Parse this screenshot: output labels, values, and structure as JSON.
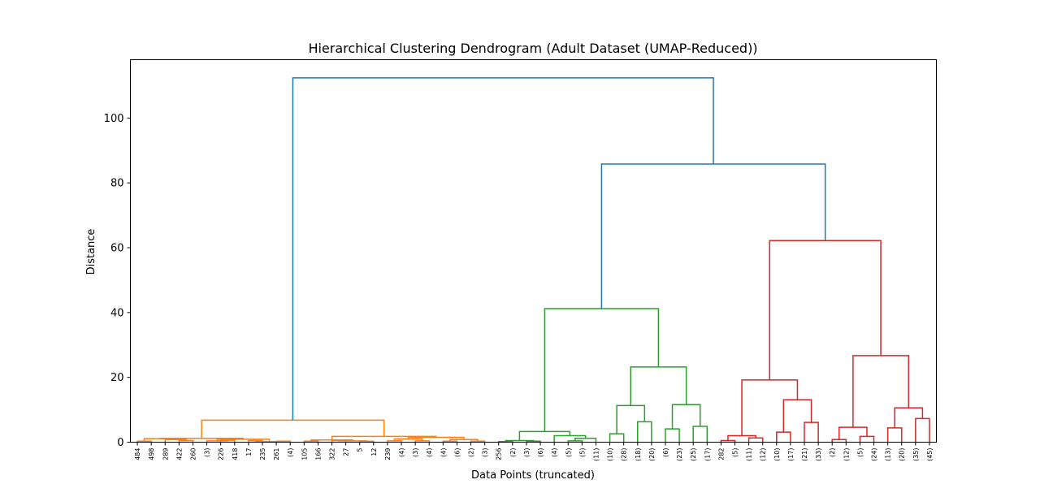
{
  "chart_data": {
    "type": "dendrogram",
    "title": "Hierarchical Clustering Dendrogram (Adult Dataset (UMAP-Reduced))",
    "xlabel": "Data Points (truncated)",
    "ylabel": "Distance",
    "ylim": [
      0,
      118
    ],
    "yticks": [
      0,
      20,
      40,
      60,
      80,
      100
    ],
    "grid": false,
    "leaves": [
      "484",
      "498",
      "289",
      "422",
      "260",
      "(3)",
      "226",
      "418",
      "17",
      "235",
      "261",
      "(4)",
      "105",
      "166",
      "322",
      "27",
      "5",
      "12",
      "239",
      "(4)",
      "(3)",
      "(4)",
      "(4)",
      "(6)",
      "(2)",
      "(3)",
      "256",
      "(2)",
      "(3)",
      "(6)",
      "(4)",
      "(5)",
      "(5)",
      "(11)",
      "(10)",
      "(28)",
      "(18)",
      "(20)",
      "(6)",
      "(23)",
      "(25)",
      "(17)",
      "282",
      "(5)",
      "(11)",
      "(12)",
      "(10)",
      "(17)",
      "(21)",
      "(33)",
      "(2)",
      "(12)",
      "(5)",
      "(24)",
      "(13)",
      "(20)",
      "(35)",
      "(45)"
    ],
    "cluster_colors": [
      "#ff7f0e",
      "#2ca02c",
      "#d62728"
    ],
    "above_threshold_color": "#1f77b4",
    "merges": [
      {
        "id": "o1",
        "l": 0,
        "r": 1,
        "h": 0.3,
        "c": 0
      },
      {
        "id": "o2",
        "l": 3,
        "r": 4,
        "h": 0.5,
        "c": 0
      },
      {
        "id": "o3",
        "l": 2,
        "r": "o2",
        "h": 0.8,
        "c": 0
      },
      {
        "id": "o4",
        "l": "o1",
        "r": "o3",
        "h": 1.1,
        "c": 0
      },
      {
        "id": "o5",
        "l": 6,
        "r": 7,
        "h": 0.6,
        "c": 0
      },
      {
        "id": "o6",
        "l": 5,
        "r": "o5",
        "h": 0.4,
        "c": 0
      },
      {
        "id": "o7",
        "l": 8,
        "r": 9,
        "h": 0.5,
        "c": 0
      },
      {
        "id": "o8",
        "l": 10,
        "r": 11,
        "h": 0.3,
        "c": 0
      },
      {
        "id": "o9",
        "l": "o7",
        "r": "o8",
        "h": 0.2,
        "c": 0
      },
      {
        "id": "o10",
        "l": "o6",
        "r": "o9",
        "h": 0.9,
        "c": 0
      },
      {
        "id": "o11",
        "l": "o4",
        "r": "o10",
        "h": 1.2,
        "c": 0
      },
      {
        "id": "o12",
        "l": 12,
        "r": 13,
        "h": 0.3,
        "c": 0
      },
      {
        "id": "o13",
        "l": 14,
        "r": 15,
        "h": 0.5,
        "c": 0
      },
      {
        "id": "o14",
        "l": 16,
        "r": 17,
        "h": 0.3,
        "c": 0
      },
      {
        "id": "o15",
        "l": "o13",
        "r": "o14",
        "h": 0.4,
        "c": 0
      },
      {
        "id": "o16",
        "l": "o12",
        "r": "o15",
        "h": 0.7,
        "c": 0
      },
      {
        "id": "o17",
        "l": 18,
        "r": 19,
        "h": 0.4,
        "c": 0
      },
      {
        "id": "o18",
        "l": 20,
        "r": 21,
        "h": 0.4,
        "c": 0
      },
      {
        "id": "o19",
        "l": "o17",
        "r": "o18",
        "h": 1.0,
        "c": 0
      },
      {
        "id": "o20",
        "l": 22,
        "r": 23,
        "h": 0.3,
        "c": 0
      },
      {
        "id": "o21",
        "l": 24,
        "r": 25,
        "h": 0.3,
        "c": 0
      },
      {
        "id": "o22",
        "l": "o20",
        "r": "o21",
        "h": 0.8,
        "c": 0
      },
      {
        "id": "o23",
        "l": "o19",
        "r": "o22",
        "h": 1.5,
        "c": 0
      },
      {
        "id": "o24",
        "l": "o16",
        "r": "o23",
        "h": 1.8,
        "c": 0
      },
      {
        "id": "o25",
        "l": "o11",
        "r": "o24",
        "h": 6.8,
        "c": 0
      },
      {
        "id": "g1",
        "l": 26,
        "r": 27,
        "h": 0.2,
        "c": 1
      },
      {
        "id": "g2",
        "l": 28,
        "r": 29,
        "h": 0.3,
        "c": 1
      },
      {
        "id": "g3",
        "l": "g1",
        "r": "g2",
        "h": 0.5,
        "c": 1
      },
      {
        "id": "g4",
        "l": 31,
        "r": 32,
        "h": 0.4,
        "c": 1
      },
      {
        "id": "g5",
        "l": "g4",
        "r": 33,
        "h": 1.2,
        "c": 1
      },
      {
        "id": "g6",
        "l": 30,
        "r": "g5",
        "h": 2.0,
        "c": 1
      },
      {
        "id": "g7",
        "l": "g3",
        "r": "g6",
        "h": 3.3,
        "c": 1
      },
      {
        "id": "g8",
        "l": 34,
        "r": 35,
        "h": 2.6,
        "c": 1
      },
      {
        "id": "g9",
        "l": 36,
        "r": 37,
        "h": 6.3,
        "c": 1
      },
      {
        "id": "g10",
        "l": "g8",
        "r": "g9",
        "h": 11.3,
        "c": 1
      },
      {
        "id": "g11",
        "l": 38,
        "r": 39,
        "h": 4.1,
        "c": 1
      },
      {
        "id": "g12",
        "l": 40,
        "r": 41,
        "h": 4.9,
        "c": 1
      },
      {
        "id": "g13",
        "l": "g11",
        "r": "g12",
        "h": 11.6,
        "c": 1
      },
      {
        "id": "g14",
        "l": "g10",
        "r": "g13",
        "h": 23.2,
        "c": 1
      },
      {
        "id": "g15",
        "l": "g7",
        "r": "g14",
        "h": 41.2,
        "c": 1
      },
      {
        "id": "r1",
        "l": 42,
        "r": 43,
        "h": 0.5,
        "c": 2
      },
      {
        "id": "r2",
        "l": 44,
        "r": 45,
        "h": 1.3,
        "c": 2
      },
      {
        "id": "r3",
        "l": "r1",
        "r": "r2",
        "h": 2.0,
        "c": 2
      },
      {
        "id": "r4",
        "l": 46,
        "r": 47,
        "h": 3.1,
        "c": 2
      },
      {
        "id": "r5",
        "l": 48,
        "r": 49,
        "h": 6.1,
        "c": 2
      },
      {
        "id": "r6",
        "l": "r4",
        "r": "r5",
        "h": 13.1,
        "c": 2
      },
      {
        "id": "r7",
        "l": "r3",
        "r": "r6",
        "h": 19.2,
        "c": 2
      },
      {
        "id": "r8",
        "l": 50,
        "r": 51,
        "h": 0.8,
        "c": 2
      },
      {
        "id": "r9",
        "l": 52,
        "r": 53,
        "h": 1.8,
        "c": 2
      },
      {
        "id": "r10",
        "l": "r8",
        "r": "r9",
        "h": 4.6,
        "c": 2
      },
      {
        "id": "r11",
        "l": 54,
        "r": 55,
        "h": 4.4,
        "c": 2
      },
      {
        "id": "r12",
        "l": 56,
        "r": 57,
        "h": 7.3,
        "c": 2
      },
      {
        "id": "r13",
        "l": "r11",
        "r": "r12",
        "h": 10.6,
        "c": 2
      },
      {
        "id": "r14",
        "l": "r10",
        "r": "r13",
        "h": 26.7,
        "c": 2
      },
      {
        "id": "r15",
        "l": "r7",
        "r": "r14",
        "h": 62.2,
        "c": 2
      },
      {
        "id": "b1",
        "l": "g15",
        "r": "r15",
        "h": 85.8,
        "c": -1
      },
      {
        "id": "b2",
        "l": "o25",
        "r": "b1",
        "h": 112.4,
        "c": -1
      }
    ]
  }
}
